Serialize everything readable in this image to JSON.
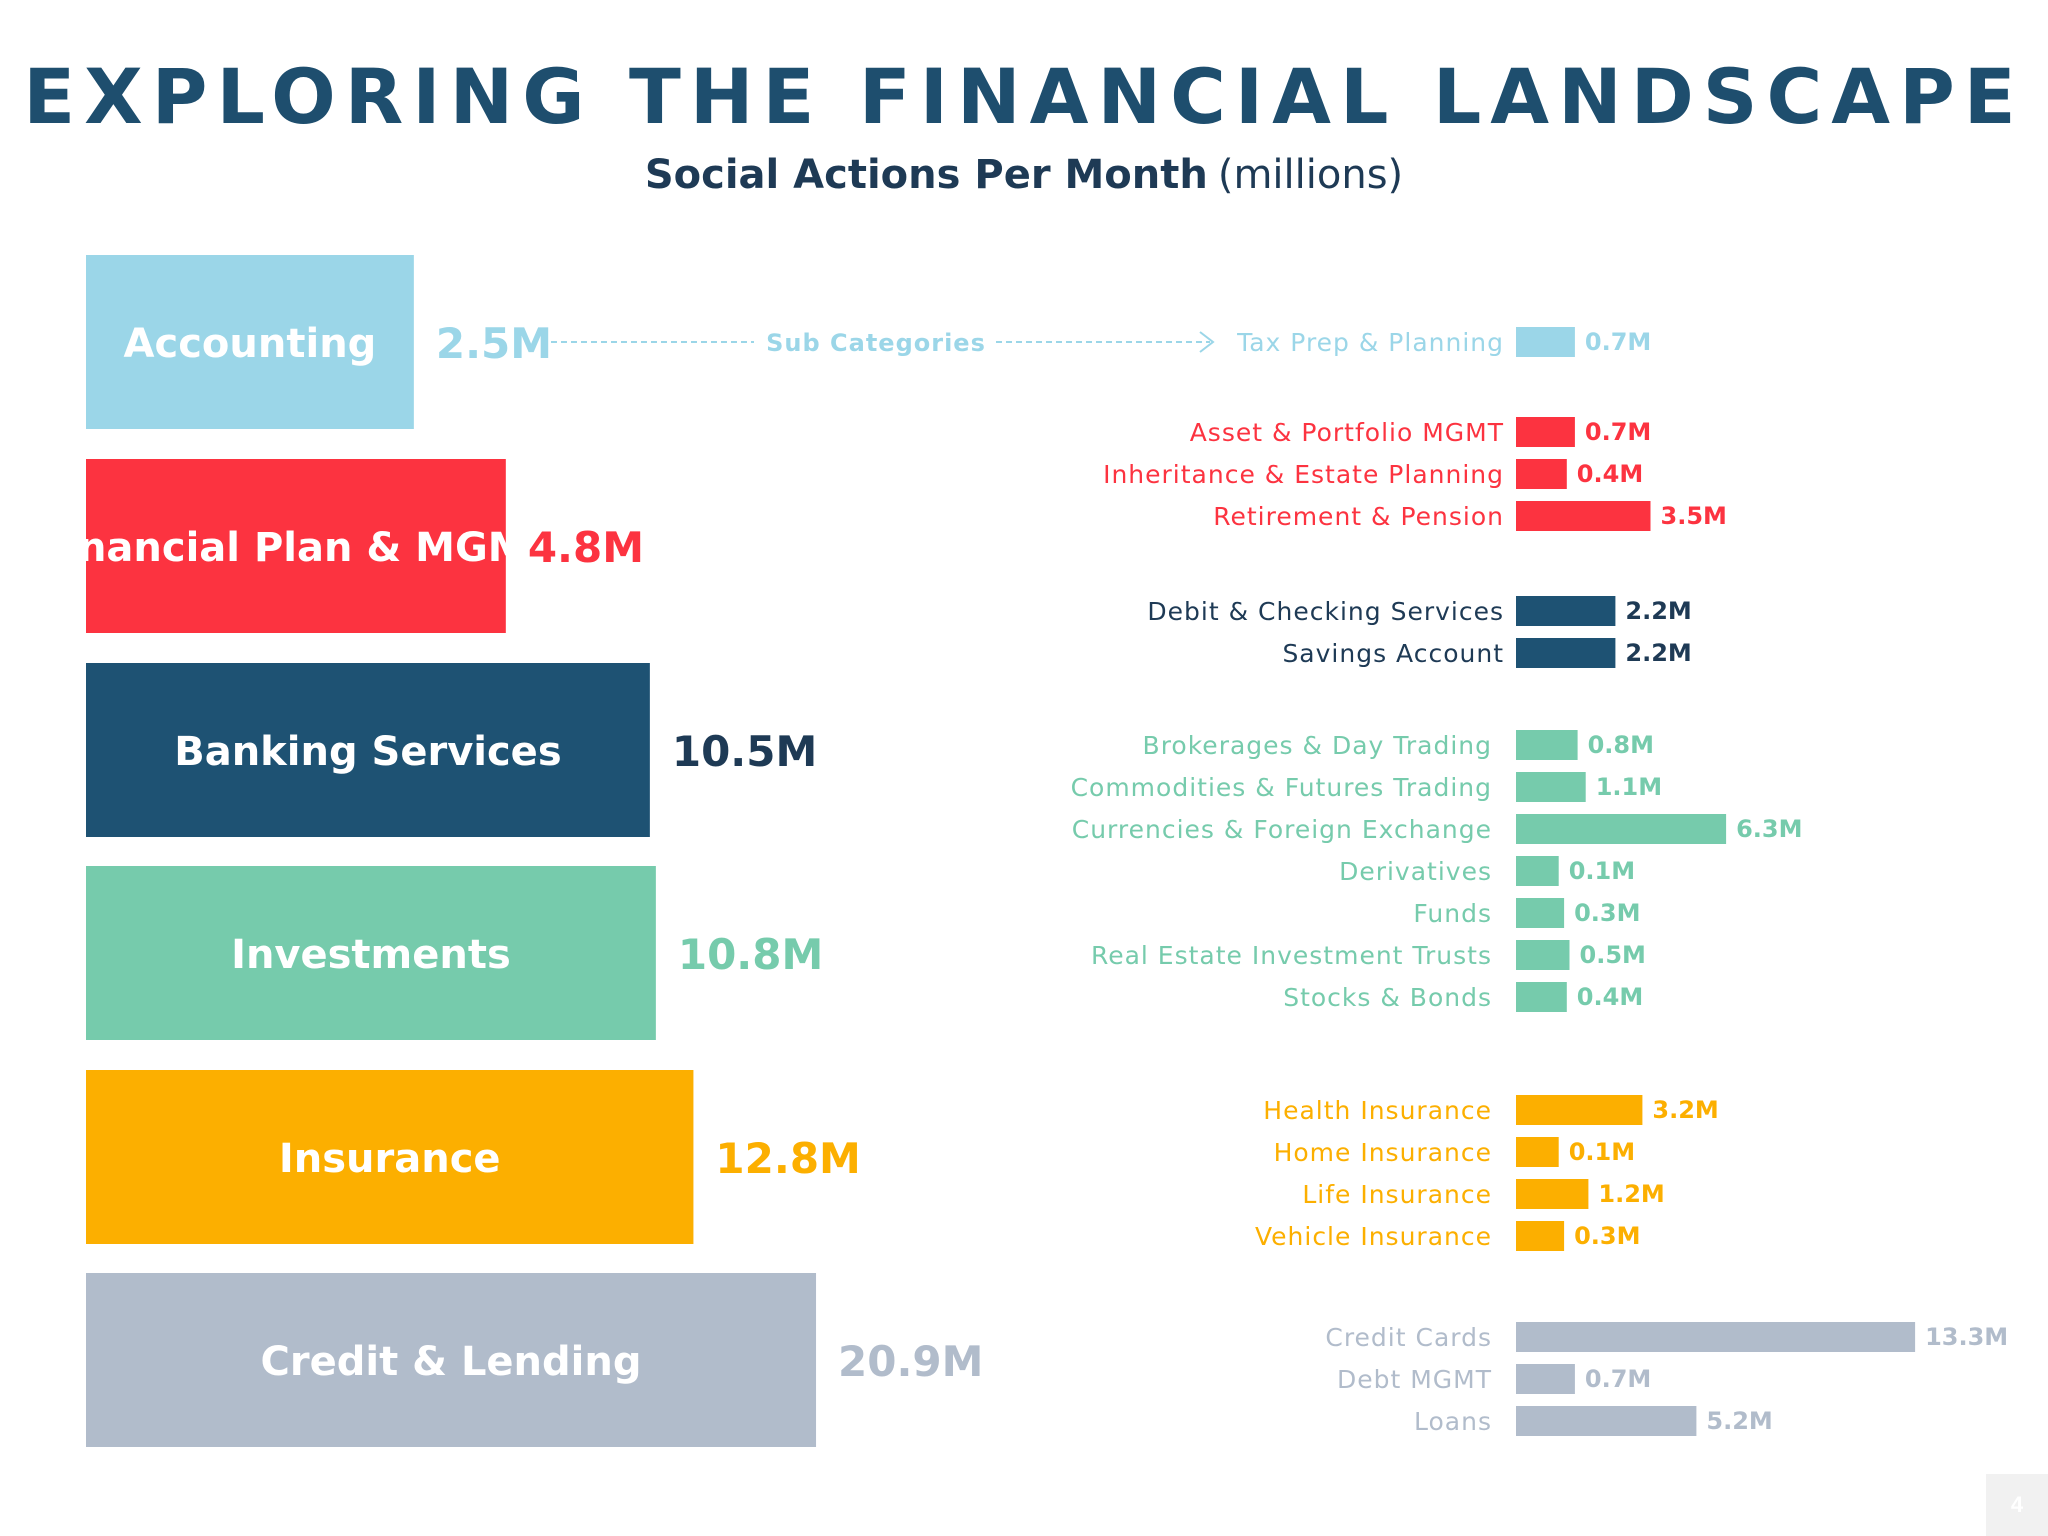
{
  "title": "EXPLORING THE FINANCIAL LANDSCAPE",
  "subtitle": {
    "strong": "Social Actions Per Month",
    "unit": "(millions)"
  },
  "annotation": {
    "label": "Sub Categories"
  },
  "page_number": "4",
  "chart_data": {
    "type": "bar",
    "orientation": "horizontal",
    "title": "Social Actions Per Month",
    "unit": "(millions)",
    "categories": [
      {
        "name": "Accounting",
        "value": 2.5,
        "label": "2.5M",
        "color": "#9bd6e8",
        "subcategories": [
          {
            "name": "Tax Prep & Planning",
            "value": 0.7,
            "label": "0.7M"
          }
        ]
      },
      {
        "name": "Financial Plan & MGMT",
        "value": 4.8,
        "label": "4.8M",
        "color": "#fc3340",
        "subcategories": [
          {
            "name": "Asset & Portfolio MGMT",
            "value": 0.7,
            "label": "0.7M"
          },
          {
            "name": "Inheritance & Estate Planning",
            "value": 0.4,
            "label": "0.4M"
          },
          {
            "name": "Retirement & Pension",
            "value": 3.5,
            "label": "3.5M"
          }
        ]
      },
      {
        "name": "Banking Services",
        "value": 10.5,
        "label": "10.5M",
        "color": "#1e5273",
        "subcategories": [
          {
            "name": "Debit & Checking Services",
            "value": 2.2,
            "label": "2.2M"
          },
          {
            "name": "Savings Account",
            "value": 2.2,
            "label": "2.2M"
          }
        ]
      },
      {
        "name": "Investments",
        "value": 10.8,
        "label": "10.8M",
        "color": "#76cbac",
        "subcategories": [
          {
            "name": "Brokerages & Day Trading",
            "value": 0.8,
            "label": "0.8M"
          },
          {
            "name": "Commodities & Futures Trading",
            "value": 1.1,
            "label": "1.1M"
          },
          {
            "name": "Currencies & Foreign Exchange",
            "value": 6.3,
            "label": "6.3M"
          },
          {
            "name": "Derivatives",
            "value": 0.1,
            "label": "0.1M"
          },
          {
            "name": "Funds",
            "value": 0.3,
            "label": "0.3M"
          },
          {
            "name": "Real Estate Investment Trusts",
            "value": 0.5,
            "label": "0.5M"
          },
          {
            "name": "Stocks & Bonds",
            "value": 0.4,
            "label": "0.4M"
          }
        ]
      },
      {
        "name": "Insurance",
        "value": 12.8,
        "label": "12.8M",
        "color": "#fcaf00",
        "subcategories": [
          {
            "name": "Health Insurance",
            "value": 3.2,
            "label": "3.2M"
          },
          {
            "name": "Home Insurance",
            "value": 0.1,
            "label": "0.1M"
          },
          {
            "name": "Life Insurance",
            "value": 1.2,
            "label": "1.2M"
          },
          {
            "name": "Vehicle Insurance",
            "value": 0.3,
            "label": "0.3M"
          }
        ]
      },
      {
        "name": "Credit & Lending",
        "value": 20.9,
        "label": "20.9M",
        "color": "#b1bccb",
        "subcategories": [
          {
            "name": "Credit Cards",
            "value": 13.3,
            "label": "13.3M"
          },
          {
            "name": "Debt MGMT",
            "value": 0.7,
            "label": "0.7M"
          },
          {
            "name": "Loans",
            "value": 5.2,
            "label": "5.2M"
          }
        ]
      }
    ]
  }
}
